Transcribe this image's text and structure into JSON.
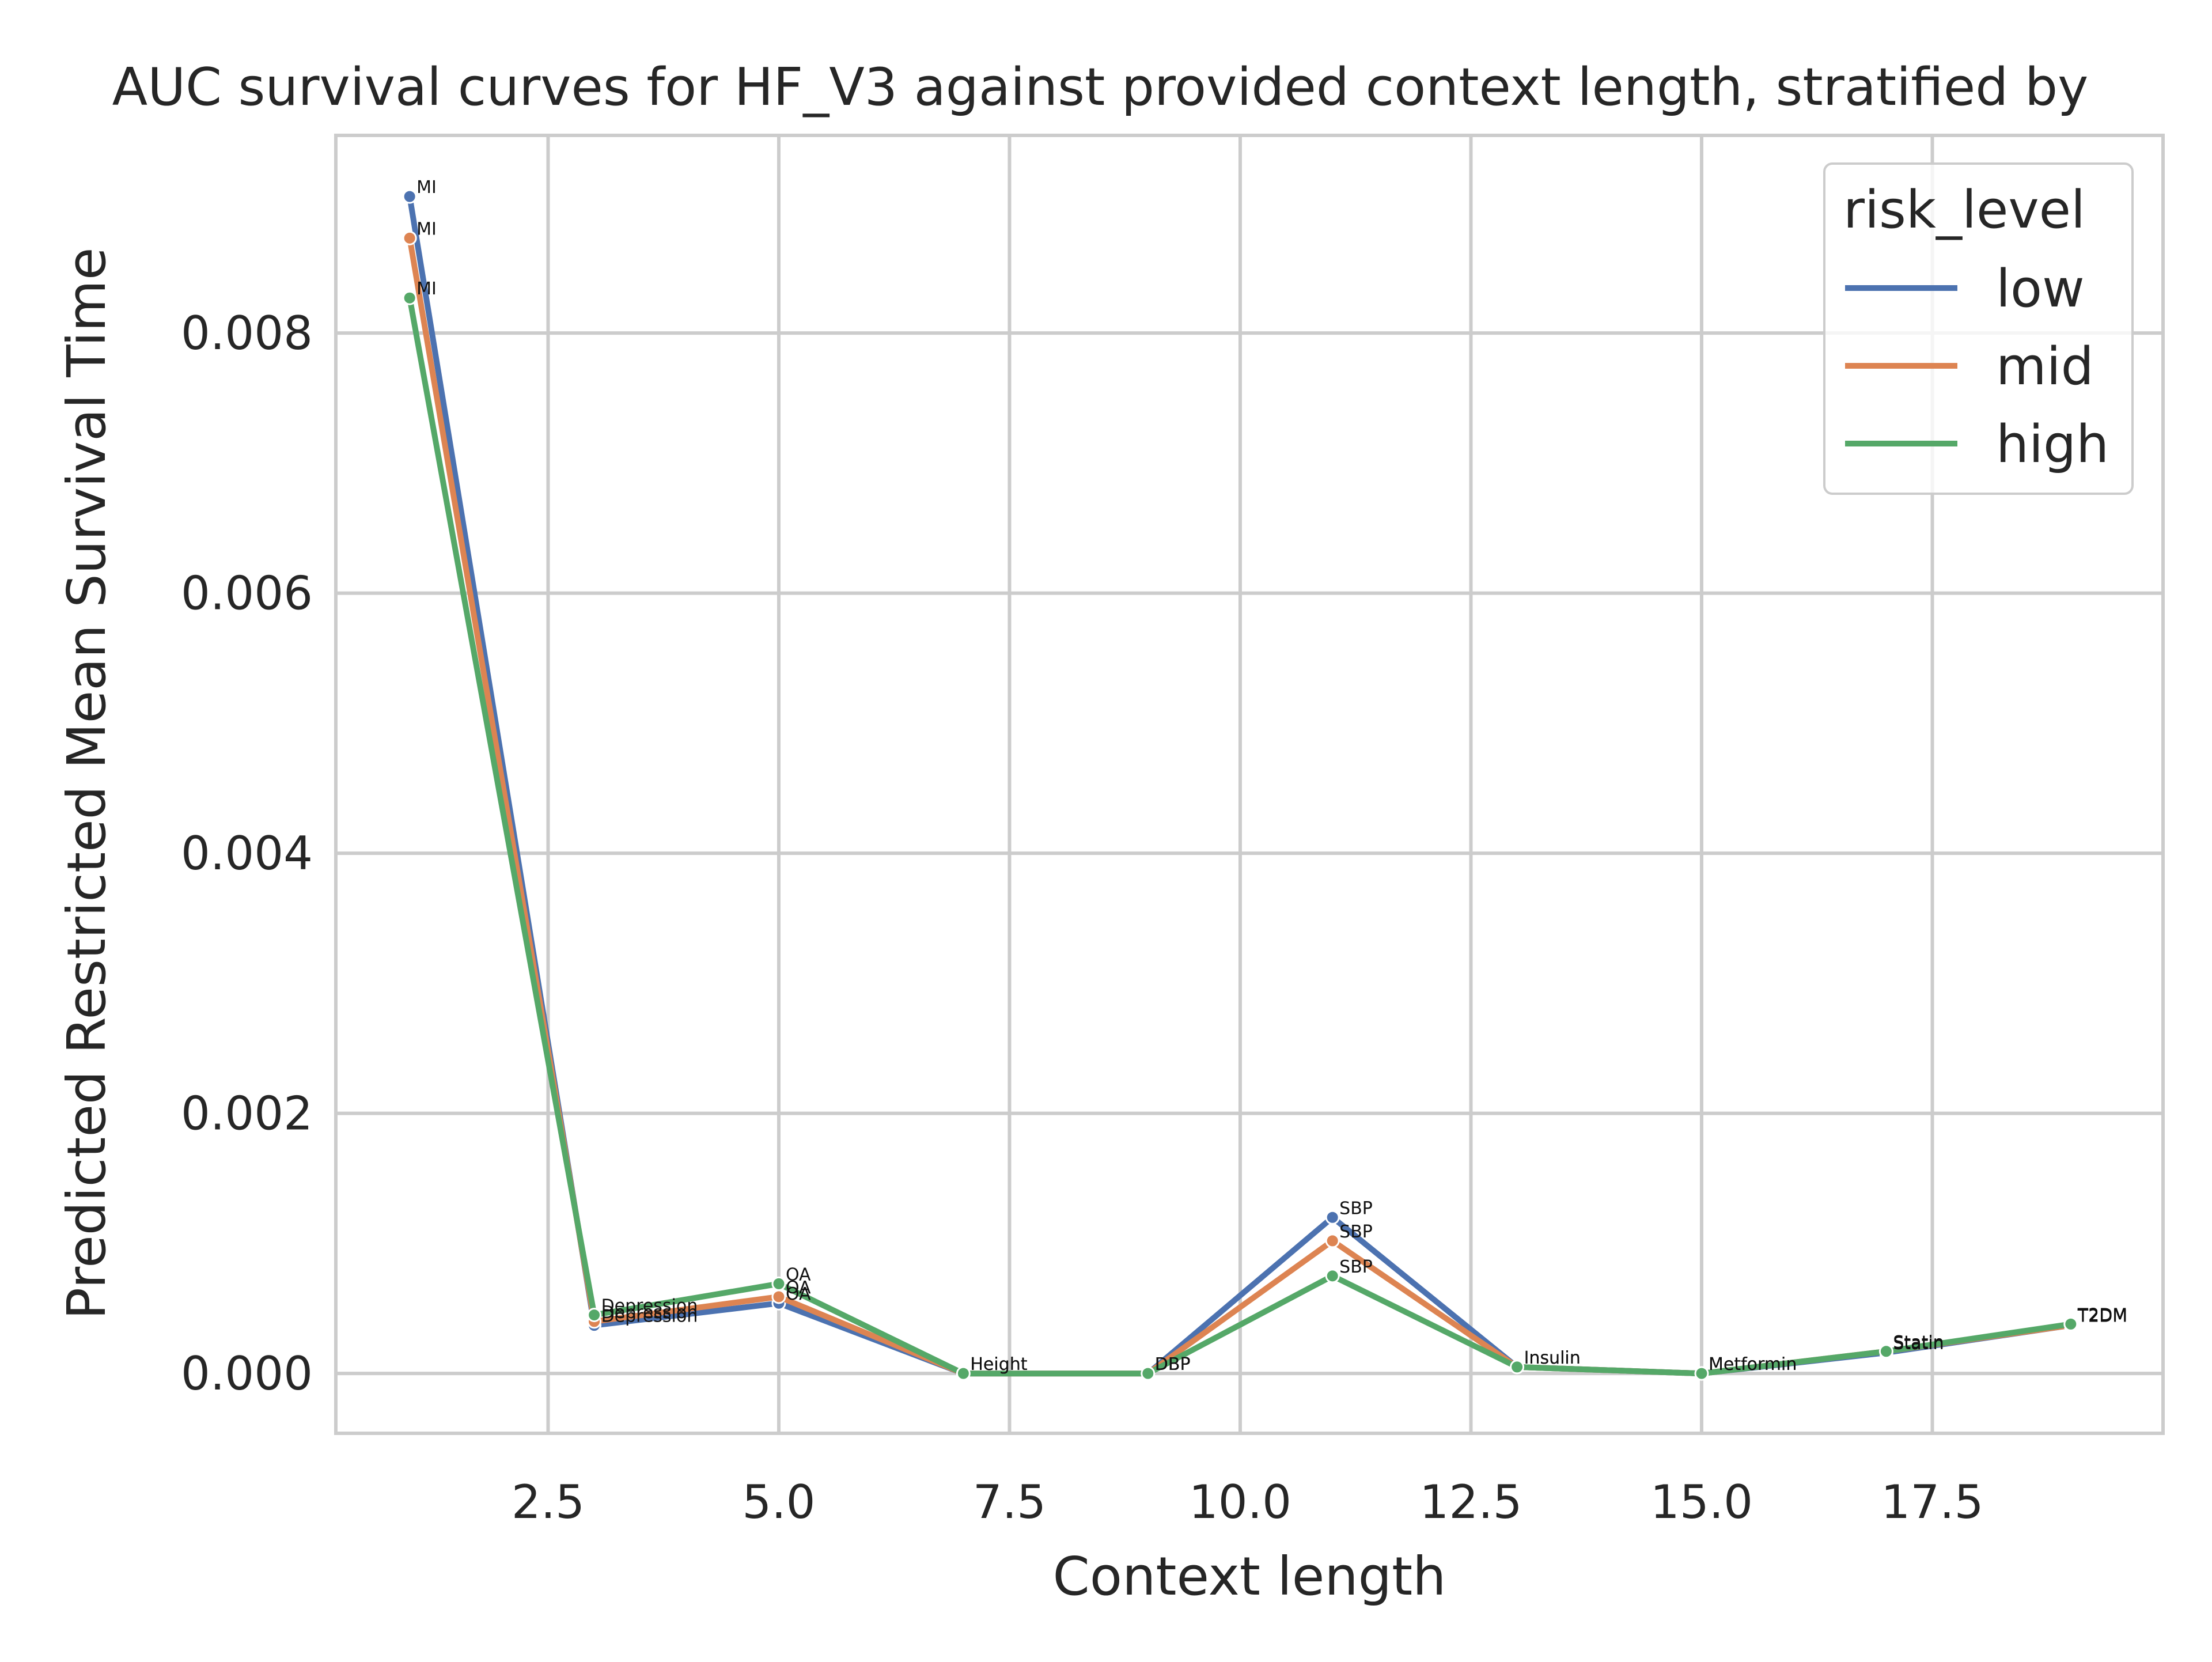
{
  "chart_data": {
    "type": "line",
    "title": "AUC survival curves for HF_V3 against provided context length, stratified by",
    "xlabel": "Context length",
    "ylabel": "Predicted Restricted Mean Survival Time",
    "xlim": [
      0.2,
      20.0
    ],
    "ylim": [
      -0.00046,
      0.00952
    ],
    "xticks": [
      2.5,
      5.0,
      7.5,
      10.0,
      12.5,
      15.0,
      17.5
    ],
    "xtick_labels": [
      "2.5",
      "5.0",
      "7.5",
      "10.0",
      "12.5",
      "15.0",
      "17.5"
    ],
    "yticks": [
      0.0,
      0.002,
      0.004,
      0.006,
      0.008
    ],
    "ytick_labels": [
      "0.000",
      "0.002",
      "0.004",
      "0.006",
      "0.008"
    ],
    "grid": true,
    "legend": {
      "title": "risk_level",
      "placement": "top-right"
    },
    "x": [
      1,
      3,
      5,
      7,
      9,
      11,
      13,
      15,
      17,
      19
    ],
    "point_labels": [
      "MI",
      "Depression",
      "OA",
      "Height",
      "DBP",
      "SBP",
      "Insulin",
      "Metformin",
      "Statin",
      "T2DM"
    ],
    "series": [
      {
        "name": "low",
        "color": "#4c72b0",
        "values": [
          0.00905,
          0.00037,
          0.00054,
          0.0,
          0.0,
          0.0012,
          5e-05,
          0.0,
          0.00016,
          0.00037
        ]
      },
      {
        "name": "mid",
        "color": "#dd8452",
        "values": [
          0.00873,
          0.0004,
          0.00059,
          0.0,
          0.0,
          0.00102,
          5e-05,
          0.0,
          0.00017,
          0.00037
        ]
      },
      {
        "name": "high",
        "color": "#55a868",
        "values": [
          0.00827,
          0.00045,
          0.00069,
          0.0,
          0.0,
          0.00075,
          5e-05,
          0.0,
          0.00017,
          0.00038
        ]
      }
    ]
  }
}
